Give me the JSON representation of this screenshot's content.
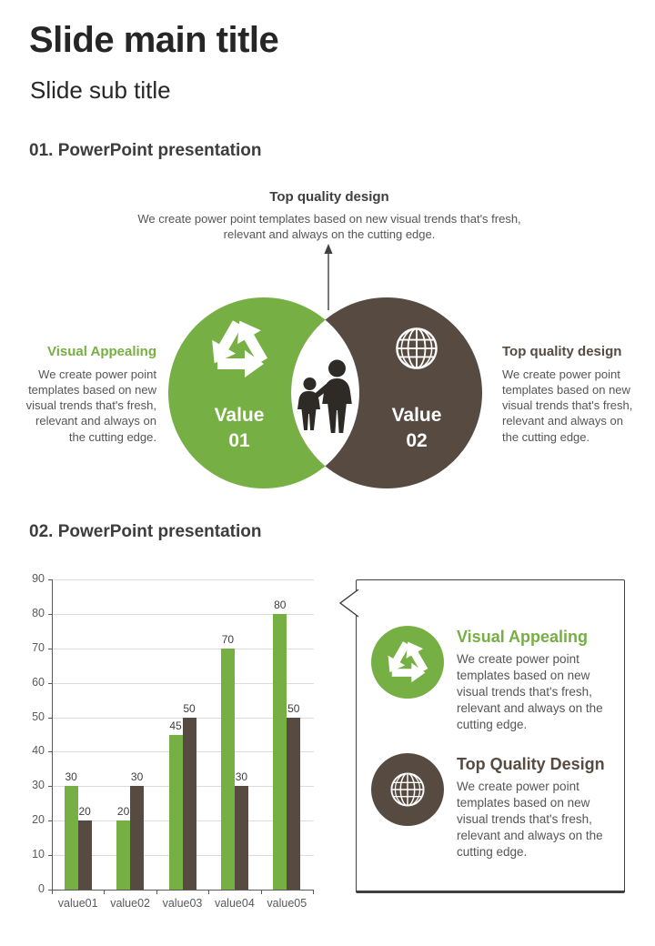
{
  "colors": {
    "green": "#76AF43",
    "brown": "#564A41",
    "heading_gray": "#3F3F3F",
    "body_gray": "#555555",
    "grid": "#DCDCDC",
    "axis": "#595959",
    "icon_white": "#FFFFFF",
    "family_silhouette": "#2E2A26"
  },
  "header": {
    "title": "Slide main title",
    "subtitle": "Slide sub title"
  },
  "section1": {
    "heading": "01. PowerPoint presentation",
    "callout_top": {
      "title": "Top quality design",
      "description": "We create power point templates based on new visual trends that's fresh, relevant and always on the cutting edge."
    },
    "left_block": {
      "title": "Visual Appealing",
      "description": "We create power point templates based on new visual trends that's fresh, relevant and always on the cutting edge."
    },
    "right_block": {
      "title": "Top quality design",
      "description": "We create power point templates based on new visual trends that's fresh, relevant and always on the cutting edge."
    },
    "venn": {
      "left": {
        "label_line1": "Value",
        "label_line2": "01",
        "icon": "recycle-icon",
        "color": "#76AF43"
      },
      "right": {
        "label_line1": "Value",
        "label_line2": "02",
        "icon": "globe-icon",
        "color": "#564A41"
      },
      "center_icon": "family-icon"
    }
  },
  "section2": {
    "heading": "02. PowerPoint presentation",
    "panel": {
      "items": [
        {
          "icon": "recycle-icon",
          "title": "Visual Appealing",
          "description": "We create power point templates based on new visual trends that's fresh, relevant and always on the cutting edge."
        },
        {
          "icon": "globe-icon",
          "title": "Top Quality Design",
          "description": "We create power point templates based on new visual trends that's fresh, relevant and always on the cutting edge."
        }
      ]
    }
  },
  "chart_data": {
    "type": "bar",
    "title": "",
    "xlabel": "",
    "ylabel": "",
    "categories": [
      "value01",
      "value02",
      "value03",
      "value04",
      "value05"
    ],
    "series": [
      {
        "name": "green",
        "color": "#76AF43",
        "values": [
          30,
          20,
          45,
          70,
          80
        ]
      },
      {
        "name": "brown",
        "color": "#564A41",
        "values": [
          20,
          30,
          50,
          30,
          50
        ]
      }
    ],
    "ylim": [
      0,
      90
    ],
    "ytick_step": 10,
    "grid": true,
    "data_labels": true,
    "legend": "none"
  }
}
